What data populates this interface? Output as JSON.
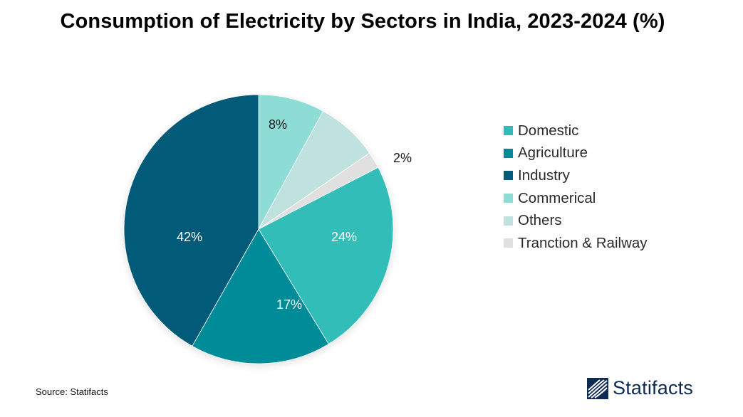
{
  "title": "Consumption of Electricity by Sectors in India, 2023-2024 (%)",
  "chart_data": {
    "type": "pie",
    "title": "Consumption of Electricity by Sectors in India, 2023-2024 (%)",
    "start_angle_deg": 0,
    "direction": "clockwise",
    "slices": [
      {
        "label": "Commerical",
        "value": 8,
        "label_text": "8%",
        "color": "#8ddcd6"
      },
      {
        "label": "Others",
        "value": 7.5,
        "label_text": "",
        "color": "#bfe2df"
      },
      {
        "label": "Tranction & Railway",
        "value": 2,
        "label_text": "2%",
        "color": "#e0e0e0"
      },
      {
        "label": "Domestic",
        "value": 24,
        "label_text": "24%",
        "color": "#30bdb8"
      },
      {
        "label": "Agriculture",
        "value": 17,
        "label_text": "17%",
        "color": "#008b99"
      },
      {
        "label": "Industry",
        "value": 42,
        "label_text": "42%",
        "color": "#005a78"
      }
    ],
    "legend_position": "right"
  },
  "legend": [
    {
      "label": "Domestic",
      "color": "#30bdb8"
    },
    {
      "label": "Agriculture",
      "color": "#008b99"
    },
    {
      "label": "Industry",
      "color": "#005a78"
    },
    {
      "label": "Commerical",
      "color": "#8ddcd6"
    },
    {
      "label": "Others",
      "color": "#bfe2df"
    },
    {
      "label": "Tranction & Railway",
      "color": "#e0e0e0"
    }
  ],
  "source": "Source: Statifacts",
  "logo": {
    "text": "Statifacts",
    "color": "#0f2a52"
  }
}
